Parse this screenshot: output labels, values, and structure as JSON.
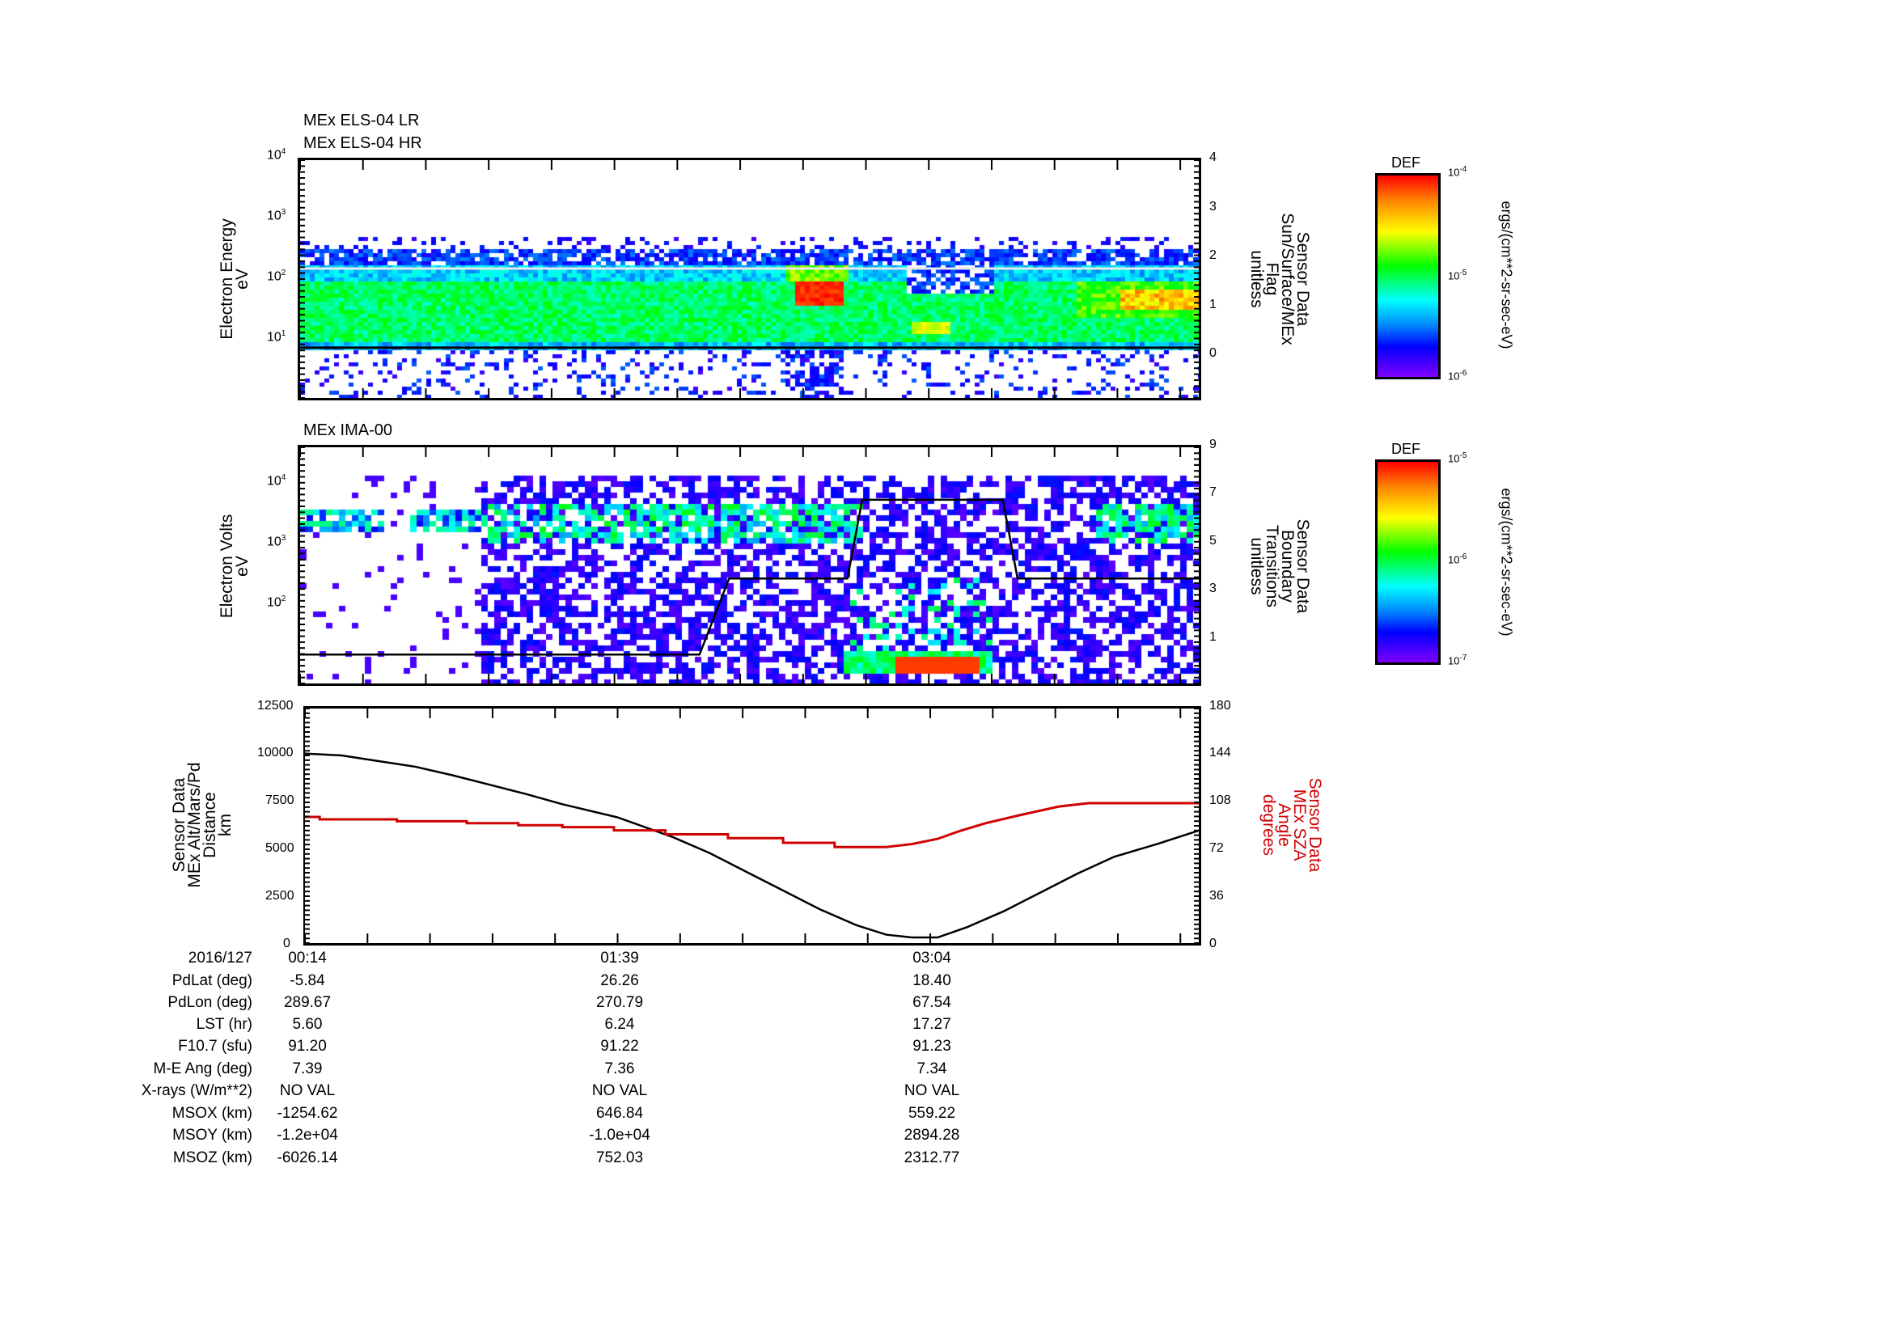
{
  "panel1": {
    "titles": [
      "MEx ELS-04 LR",
      "MEx ELS-04 HR"
    ],
    "left_label": [
      "Electron Energy",
      "eV"
    ],
    "right_label": [
      "Sensor Data",
      "Sun/Surface/MEx",
      "Flag",
      "unitless"
    ],
    "left_ticks": [
      "4",
      "3",
      "2",
      "1"
    ],
    "right_ticks": [
      "4",
      "3",
      "2",
      "1",
      "0"
    ],
    "colorbar": {
      "title": "DEF",
      "ticks": [
        "-4",
        "-5",
        "-6"
      ],
      "units": "ergs/(cm**2-sr-sec-eV)"
    }
  },
  "panel2": {
    "title": "MEx IMA-00",
    "left_label": [
      "Electron Volts",
      "eV"
    ],
    "right_label": [
      "Sensor Data",
      "Boundary",
      "Transitions",
      "unitless"
    ],
    "left_ticks": [
      "4",
      "3",
      "2"
    ],
    "right_ticks": [
      "9",
      "7",
      "5",
      "3",
      "1"
    ],
    "colorbar": {
      "title": "DEF",
      "ticks": [
        "-5",
        "-6",
        "-7"
      ],
      "units": "ergs/(cm**2-sr-sec-eV)"
    }
  },
  "panel3": {
    "left_label": [
      "Sensor Data",
      "MEx Alt/Mars/Pd",
      "Distance",
      "km"
    ],
    "right_label": [
      "Sensor Data",
      "MEx SZA",
      "Angle",
      "degrees"
    ],
    "left_ticks": [
      "12500",
      "10000",
      "7500",
      "5000",
      "2500",
      "0"
    ],
    "right_ticks": [
      "180",
      "144",
      "108",
      "72",
      "36",
      "0"
    ]
  },
  "colors": {
    "altitude": "#000000",
    "sza": "#d00000"
  },
  "chart_data": [
    {
      "type": "heatmap",
      "title": "MEx ELS-04 LR / MEx ELS-04 HR",
      "ylabel": "Electron Energy (eV)",
      "yscale": "log",
      "ylim": [
        1,
        10000
      ],
      "y2label": "Sensor Data Sun/Surface/MEx Flag (unitless)",
      "y2lim": [
        0,
        4
      ],
      "colorbar": {
        "label": "DEF",
        "range": [
          1e-06,
          0.0001
        ],
        "units": "ergs/(cm**2-sr-sec-eV)"
      },
      "features": {
        "core_band_eV": [
          7,
          400
        ],
        "intense_patch_fraction": [
          0.55,
          0.595
        ]
      }
    },
    {
      "type": "heatmap",
      "title": "MEx IMA-00",
      "ylabel": "Electron Volts (eV)",
      "yscale": "log",
      "ylim": [
        4.6,
        42000
      ],
      "y2label": "Sensor Data Boundary Transitions (unitless)",
      "y2lim": [
        0,
        9
      ],
      "colorbar": {
        "label": "DEF",
        "range": [
          1e-07,
          1e-05
        ],
        "units": "ergs/(cm**2-sr-sec-eV)"
      },
      "boundary_series": {
        "t_min": [
          0,
          108,
          116,
          148,
          152,
          190,
          194,
          243
        ],
        "value": [
          1.1,
          1.1,
          4,
          4,
          7,
          7,
          4,
          4
        ]
      }
    },
    {
      "type": "line",
      "xlabel": "UT (2016/127)",
      "x_range_min": [
        0,
        243
      ],
      "ylabel": "MEx Alt/Mars/Pd Distance (km)",
      "ylim": [
        0,
        12500
      ],
      "y2label": "MEx SZA Angle (degrees)",
      "y2lim": [
        0,
        180
      ],
      "series": [
        {
          "name": "Altitude",
          "axis": "left",
          "t_min": [
            0,
            10,
            20,
            30,
            40,
            50,
            60,
            70,
            85,
            100,
            110,
            120,
            130,
            140,
            150,
            158,
            165,
            172,
            180,
            190,
            200,
            210,
            220,
            232,
            243
          ],
          "values": [
            10100,
            10000,
            9700,
            9400,
            8950,
            8450,
            7950,
            7400,
            6700,
            5650,
            4800,
            3800,
            2800,
            1800,
            950,
            450,
            300,
            300,
            850,
            1700,
            2700,
            3700,
            4600,
            5300,
            6000
          ]
        },
        {
          "name": "SZA",
          "axis": "right",
          "t_min": [
            0,
            4,
            4,
            25,
            25,
            44,
            44,
            58,
            58,
            70,
            70,
            84,
            84,
            98,
            98,
            115,
            115,
            130,
            130,
            144,
            144,
            158,
            165,
            172,
            178,
            185,
            195,
            205,
            213,
            243
          ],
          "values": [
            96.8,
            96.8,
            95,
            95,
            93.5,
            93.5,
            92,
            92,
            90.5,
            90.5,
            89,
            89,
            86.5,
            86.5,
            83.5,
            83.5,
            80.5,
            80.5,
            77,
            77,
            73.7,
            73.7,
            76,
            80,
            86,
            92,
            98.6,
            104.8,
            107.4,
            107.4
          ]
        }
      ]
    }
  ],
  "ephemeris": {
    "row_labels": [
      "2016/127",
      "PdLat (deg)",
      "PdLon (deg)",
      "LST (hr)",
      "F10.7 (sfu)",
      "M-E Ang (deg)",
      "X-rays (W/m**2)",
      "MSOX (km)",
      "MSOY (km)",
      "MSOZ (km)"
    ],
    "columns": [
      [
        "00:14",
        "-5.84",
        "289.67",
        "5.60",
        "91.20",
        "7.39",
        "NO VAL",
        "-1254.62",
        "-1.2e+04",
        "-6026.14"
      ],
      [
        "01:39",
        "26.26",
        "270.79",
        "6.24",
        "91.22",
        "7.36",
        "NO VAL",
        "646.84",
        "-1.0e+04",
        "752.03"
      ],
      [
        "03:04",
        "18.40",
        "67.54",
        "17.27",
        "91.23",
        "7.34",
        "NO VAL",
        "559.22",
        "2894.28",
        "2312.77"
      ]
    ]
  }
}
